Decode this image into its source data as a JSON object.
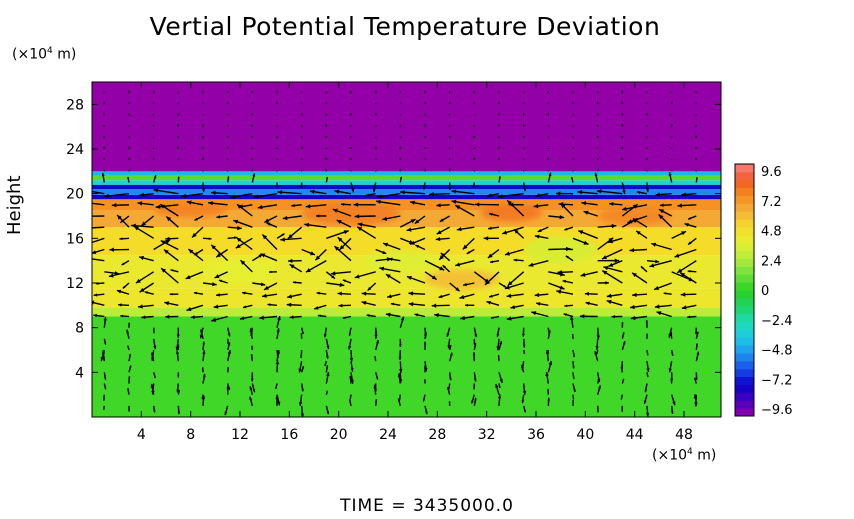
{
  "colors": {
    "purple": "#9400a8",
    "blue_dark": "#0a00c8",
    "blue": "#1a4ee8",
    "cyan": "#1ec8e6",
    "green_light": "#6ee05a",
    "green": "#2ad21e",
    "yellow_green": "#c8f03c",
    "yellow": "#f0e628",
    "orange_light": "#f5b23c",
    "orange": "#f58c1e",
    "red": "#f03c28",
    "pink": "#f58282"
  },
  "chart_data": {
    "type": "heatmap",
    "title": "Vertial Potential Temperature Deviation",
    "ylabel": "Height",
    "y_unit_prefix": "(×10",
    "y_unit_exp": "4",
    "y_unit_suffix": " m)",
    "x_unit_prefix": "(×10",
    "x_unit_exp": "4",
    "x_unit_suffix": " m)",
    "xlim": [
      0,
      51
    ],
    "ylim": [
      0,
      30
    ],
    "x_ticks": [
      4,
      8,
      12,
      16,
      20,
      24,
      28,
      32,
      36,
      40,
      44,
      48
    ],
    "y_ticks": [
      4,
      8,
      12,
      16,
      20,
      24,
      28
    ],
    "colorbar": {
      "range": [
        -9.6,
        9.6
      ],
      "labels": [
        "9.6",
        "7.2",
        "4.8",
        "2.4",
        "0",
        "−2.4",
        "−4.8",
        "−7.2",
        "−9.6"
      ],
      "stops": [
        {
          "v": -9.6,
          "c": "#9400a8"
        },
        {
          "v": -8.4,
          "c": "#4800c0"
        },
        {
          "v": -7.2,
          "c": "#0a00c8"
        },
        {
          "v": -6.0,
          "c": "#1a4ee8"
        },
        {
          "v": -4.8,
          "c": "#1e96f0"
        },
        {
          "v": -3.6,
          "c": "#1ec8e6"
        },
        {
          "v": -2.4,
          "c": "#1edcb4"
        },
        {
          "v": -1.2,
          "c": "#1ed264"
        },
        {
          "v": 0.0,
          "c": "#2ad21e"
        },
        {
          "v": 1.2,
          "c": "#6ee03c"
        },
        {
          "v": 2.4,
          "c": "#b4eb3c"
        },
        {
          "v": 3.6,
          "c": "#e6f032"
        },
        {
          "v": 4.8,
          "c": "#f5dc28"
        },
        {
          "v": 6.0,
          "c": "#f5b23c"
        },
        {
          "v": 7.2,
          "c": "#f58c1e"
        },
        {
          "v": 8.4,
          "c": "#f05a28"
        },
        {
          "v": 9.6,
          "c": "#f58282"
        }
      ]
    },
    "bands": [
      {
        "y0": 0.0,
        "y1": 9.0,
        "value": 0.4
      },
      {
        "y0": 9.0,
        "y1": 9.8,
        "value": 2.6
      },
      {
        "y0": 9.8,
        "y1": 11.5,
        "value": 4.2
      },
      {
        "y0": 11.5,
        "y1": 14.5,
        "value": 4.0
      },
      {
        "y0": 14.5,
        "y1": 17.0,
        "value": 4.8
      },
      {
        "y0": 17.0,
        "y1": 18.5,
        "value": 6.3
      },
      {
        "y0": 18.5,
        "y1": 19.5,
        "value": 7.0
      },
      {
        "y0": 19.5,
        "y1": 19.9,
        "value": -7.5
      },
      {
        "y0": 19.9,
        "y1": 20.4,
        "value": -5.0
      },
      {
        "y0": 20.4,
        "y1": 20.8,
        "value": -7.0
      },
      {
        "y0": 20.8,
        "y1": 21.2,
        "value": -2.8
      },
      {
        "y0": 21.2,
        "y1": 21.6,
        "value": 0.8
      },
      {
        "y0": 21.6,
        "y1": 22.0,
        "value": -4.0
      },
      {
        "y0": 22.0,
        "y1": 30.0,
        "value": -9.6
      }
    ],
    "patches": [
      {
        "x": 21,
        "y": 18.2,
        "rx": 4,
        "ry": 1.0,
        "value": 7.6
      },
      {
        "x": 34,
        "y": 18.3,
        "rx": 2.5,
        "ry": 0.8,
        "value": 7.8
      },
      {
        "x": 8,
        "y": 18.5,
        "rx": 3,
        "ry": 0.6,
        "value": 7.5
      },
      {
        "x": 44,
        "y": 18.0,
        "rx": 3,
        "ry": 0.8,
        "value": 7.4
      },
      {
        "x": 30,
        "y": 12.3,
        "rx": 3,
        "ry": 0.9,
        "value": 5.8
      },
      {
        "x": 38,
        "y": 15.0,
        "rx": 3,
        "ry": 1.2,
        "value": 3.2
      },
      {
        "x": 25,
        "y": 14.0,
        "rx": 3,
        "ry": 1.0,
        "value": 3.4
      },
      {
        "x": 12,
        "y": 13.0,
        "rx": 3,
        "ry": 1.0,
        "value": 3.6
      }
    ],
    "vector_field": {
      "x_spacing": 2.0,
      "y_levels": [
        1,
        2,
        3,
        4,
        5,
        6,
        7,
        8,
        9,
        10,
        11,
        12,
        13,
        14,
        15,
        16,
        17,
        18,
        19,
        20,
        21,
        22,
        23,
        24,
        25,
        26,
        27,
        28,
        29
      ]
    }
  },
  "footer": {
    "time_label": "TIME",
    "equals": "=",
    "time_value": "3435000.0"
  }
}
